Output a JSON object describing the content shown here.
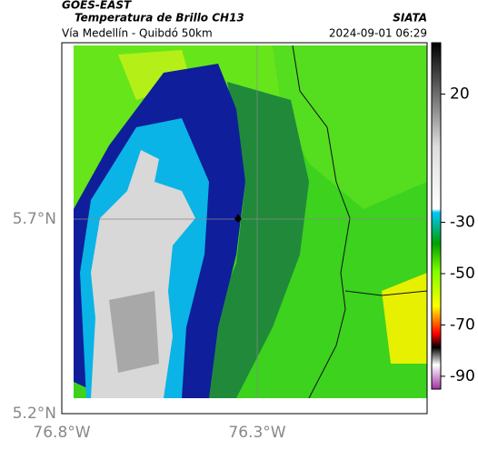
{
  "header": {
    "title": "GOES-EAST",
    "subtitle": "Temperatura de Brillo CH13",
    "source": "SIATA",
    "location": "Vía Medellín - Quibdó 50km",
    "datetime": "2024-09-01 06:29"
  },
  "map": {
    "lat_labels": [
      "5.7°N",
      "5.2°N"
    ],
    "lon_labels": [
      "76.8°W",
      "76.3°W"
    ]
  },
  "colorbar": {
    "lim": [
      40,
      -95
    ],
    "ticks": [
      20,
      -30,
      -50,
      -70,
      -90
    ]
  }
}
